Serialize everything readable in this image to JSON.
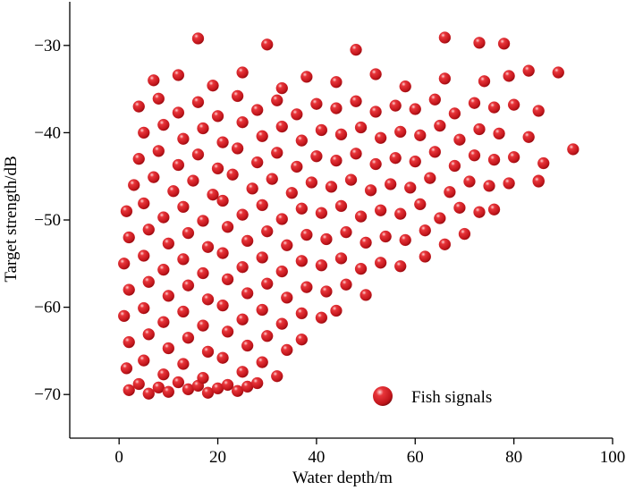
{
  "chart_data": {
    "type": "scatter",
    "x_label": "Water depth/m",
    "y_label": "Target strength/dB",
    "xlim": [
      -10,
      100
    ],
    "ylim": [
      -75,
      -25
    ],
    "xticks": [
      0,
      20,
      40,
      60,
      80,
      100
    ],
    "yticks": [
      {
        "value": -30,
        "label": "−30"
      },
      {
        "value": -40,
        "label": "−40"
      },
      {
        "value": -50,
        "label": "−50"
      },
      {
        "value": -60,
        "label": "−60"
      },
      {
        "value": -70,
        "label": "−70"
      }
    ],
    "legend": "lower right",
    "series": [
      {
        "name": "Fish signals",
        "color": "#d0141b",
        "x": [
          2,
          4,
          6,
          8,
          10,
          12,
          14,
          16,
          18,
          20,
          22,
          24,
          26,
          28,
          1.5,
          5,
          9,
          13,
          17,
          21,
          25,
          29,
          32,
          2,
          6,
          10,
          14,
          18,
          22,
          26,
          30,
          34,
          37,
          1,
          5,
          9,
          13,
          17,
          21,
          25,
          29,
          33,
          37,
          41,
          44,
          2,
          6,
          10,
          14,
          18,
          22,
          26,
          30,
          34,
          38,
          42,
          46,
          50,
          1,
          5,
          9,
          13,
          17,
          21,
          25,
          29,
          33,
          37,
          41,
          45,
          49,
          53,
          57,
          62,
          2,
          6,
          10,
          14,
          18,
          22,
          26,
          30,
          34,
          38,
          42,
          46,
          50,
          54,
          58,
          62,
          66,
          70,
          1.5,
          5,
          9,
          13,
          17,
          21,
          25,
          29,
          33,
          37,
          41,
          45,
          49,
          53,
          57,
          61,
          65,
          69,
          73,
          76,
          3,
          7,
          11,
          15,
          19,
          23,
          27,
          31,
          35,
          39,
          43,
          47,
          51,
          55,
          59,
          63,
          67,
          71,
          75,
          79,
          85,
          4,
          8,
          12,
          16,
          20,
          24,
          28,
          32,
          36,
          40,
          44,
          48,
          52,
          56,
          60,
          64,
          68,
          72,
          76,
          80,
          86,
          5,
          9,
          13,
          17,
          21,
          25,
          29,
          33,
          37,
          41,
          45,
          49,
          53,
          57,
          61,
          65,
          69,
          73,
          77,
          83,
          4,
          8,
          12,
          16,
          20,
          24,
          28,
          32,
          36,
          40,
          44,
          48,
          52,
          56,
          60,
          64,
          68,
          72,
          76,
          80,
          85,
          7,
          12,
          19,
          25,
          33,
          38,
          44,
          52,
          58,
          66,
          74,
          79,
          83,
          16,
          30,
          48,
          66,
          73,
          78,
          89,
          92,
          85
        ],
        "values": [
          -69.5,
          -68.8,
          -69.9,
          -69.2,
          -69.7,
          -68.6,
          -69.4,
          -69.0,
          -69.8,
          -69.3,
          -68.9,
          -69.6,
          -69.1,
          -68.7,
          -67,
          -66.1,
          -67.7,
          -66.5,
          -68.1,
          -65.8,
          -67.4,
          -66.3,
          -67.9,
          -64,
          -63.1,
          -64.7,
          -63.5,
          -65.1,
          -62.8,
          -64.4,
          -63.3,
          -64.9,
          -63.7,
          -61,
          -60.1,
          -61.7,
          -60.5,
          -62.1,
          -59.8,
          -61.4,
          -60.3,
          -61.9,
          -60.7,
          -61.2,
          -60.4,
          -58,
          -57.1,
          -58.7,
          -57.5,
          -59.1,
          -56.8,
          -58.4,
          -57.3,
          -58.9,
          -57.7,
          -58.2,
          -57.4,
          -58.6,
          -55,
          -54.1,
          -55.7,
          -54.5,
          -56.1,
          -53.8,
          -55.4,
          -54.3,
          -55.9,
          -54.7,
          -55.2,
          -54.4,
          -55.6,
          -54.9,
          -55.3,
          -54.2,
          -52,
          -51.1,
          -52.7,
          -51.5,
          -53.1,
          -50.8,
          -52.4,
          -51.3,
          -52.9,
          -51.7,
          -52.2,
          -51.4,
          -52.6,
          -51.9,
          -52.3,
          -51.2,
          -52.8,
          -51.6,
          -49,
          -48.1,
          -49.7,
          -48.5,
          -50.1,
          -47.8,
          -49.4,
          -48.3,
          -49.9,
          -48.7,
          -49.2,
          -48.4,
          -49.6,
          -48.9,
          -49.3,
          -48.2,
          -49.8,
          -48.6,
          -49.1,
          -48.8,
          -46,
          -45.1,
          -46.7,
          -45.5,
          -47.1,
          -44.8,
          -46.4,
          -45.3,
          -46.9,
          -45.7,
          -46.2,
          -45.4,
          -46.6,
          -45.9,
          -46.3,
          -45.2,
          -46.8,
          -45.6,
          -46.1,
          -45.8,
          -45.5,
          -43,
          -42.1,
          -43.7,
          -42.5,
          -44.1,
          -41.8,
          -43.4,
          -42.3,
          -43.9,
          -42.7,
          -43.2,
          -42.4,
          -43.6,
          -42.9,
          -43.3,
          -42.2,
          -43.8,
          -42.6,
          -43.1,
          -42.8,
          -43.5,
          -40,
          -39.1,
          -40.7,
          -39.5,
          -41.1,
          -38.8,
          -40.4,
          -39.3,
          -40.9,
          -39.7,
          -40.2,
          -39.4,
          -40.6,
          -39.9,
          -40.3,
          -39.2,
          -40.8,
          -39.6,
          -40.1,
          -40.5,
          -37,
          -36.1,
          -37.7,
          -36.5,
          -38.1,
          -35.8,
          -37.4,
          -36.3,
          -37.9,
          -36.7,
          -37.2,
          -36.4,
          -37.6,
          -36.9,
          -37.3,
          -36.2,
          -37.8,
          -36.6,
          -37.1,
          -36.8,
          -37.5,
          -34,
          -33.4,
          -34.6,
          -33.1,
          -34.9,
          -33.6,
          -34.2,
          -33.3,
          -34.7,
          -33.8,
          -34.1,
          -33.5,
          -32.9,
          -29.2,
          -29.9,
          -30.5,
          -29.1,
          -29.7,
          -29.8,
          -33.1,
          -41.9,
          -45.6
        ]
      }
    ]
  }
}
